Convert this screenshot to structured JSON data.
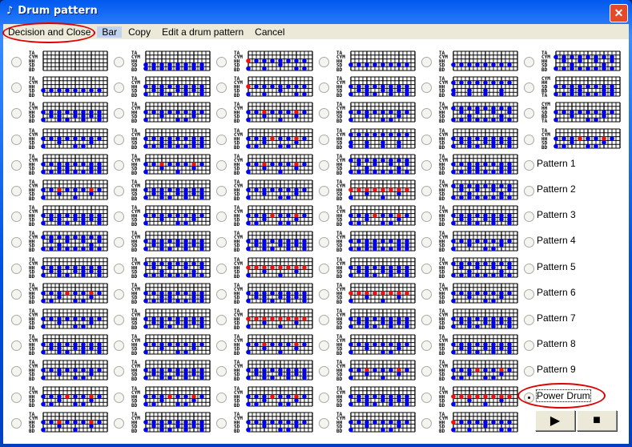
{
  "window": {
    "title": "Drum pattern",
    "close": "✕"
  },
  "menu": [
    "Decision and Close",
    "Bar",
    "Copy",
    "Edit a drum pattern",
    "Cancel"
  ],
  "menu_selected": 1,
  "default_labels": [
    "TA",
    "CYM",
    "HH",
    "SD",
    "BD"
  ],
  "templates": [
    [
      "................",
      "................",
      "................",
      "................",
      "................"
    ],
    [
      "................",
      "................",
      "................",
      "b.b.b.b.b.b.b.b.",
      "b.b.b.b.b.b.b.b."
    ],
    [
      "................",
      "................",
      "r.b.b.b.b.b.b.b.",
      "........b.......",
      "b...b.......b.b."
    ],
    [
      "................",
      "................",
      "................",
      "b.b.b.b.b.b.b.b.",
      "................"
    ],
    [
      "................",
      "................",
      "b.b.b.b.b.b.b.b.",
      "..b.b...b.b.b.b.",
      "b...b.b...b...b."
    ],
    [
      "................",
      "................",
      "b.b.b.b.b.b.b.b.",
      "....b.......b...",
      "b.......b.b....."
    ],
    [
      "................",
      "................",
      "b.b.r.b.b.b.r.b.",
      "....b.......b...",
      "b.......b......."
    ],
    [
      "................",
      "b.b.b.b.b.b.b.b.",
      "................",
      "b...b...b...b...",
      "b...b...b...b..."
    ],
    [
      "................",
      "................",
      "b.b.b.r.b.b.r.b.",
      "....b.......b...",
      "b.b.....b.b....."
    ],
    [
      "................",
      "................",
      "r.r.r.r.r.r.r.r.",
      "....b.......b...",
      "b.......b......."
    ],
    [
      "................",
      "b.b.b.b.b.b.b.b.",
      "..b...b...b...b.",
      "....b.......b...",
      "b.b.b.b.b.b.b.b."
    ],
    [
      "................",
      "................",
      "b.b.b.b.b.b.b.b.",
      "....b.b.....b.b.",
      "b.b.b.b.b.b.b.b."
    ]
  ],
  "columns": [
    {
      "cells": [
        0,
        3,
        4,
        5,
        11,
        6,
        4,
        10,
        4,
        8,
        5,
        4,
        5,
        8,
        6
      ]
    },
    {
      "cells": [
        1,
        4,
        5,
        11,
        6,
        4,
        5,
        4,
        10,
        11,
        4,
        5,
        4,
        8,
        4
      ]
    },
    {
      "cells": [
        2,
        2,
        6,
        8,
        6,
        5,
        8,
        4,
        9,
        4,
        9,
        6,
        4,
        8,
        5
      ]
    },
    {
      "cells": [
        3,
        4,
        5,
        7,
        10,
        9,
        8,
        11,
        4,
        9,
        4,
        5,
        6,
        4,
        5
      ]
    },
    {
      "cells": [
        3,
        7,
        10,
        4,
        11,
        10,
        4,
        5,
        10,
        5,
        4,
        4,
        8,
        9,
        2
      ]
    },
    {
      "cells": [
        10,
        11,
        5,
        8
      ]
    }
  ],
  "col6_labels": [
    null,
    [
      "CYM",
      "HH",
      "SD",
      "BD",
      "TA"
    ],
    [
      "CYM",
      "HH",
      "SD",
      "BD",
      "TA"
    ],
    null
  ],
  "patterns": [
    "Pattern 1",
    "Pattern 2",
    "Pattern 3",
    "Pattern 4",
    "Pattern 5",
    "Pattern 6",
    "Pattern 7",
    "Pattern 8",
    "Pattern 9",
    "Power Drum"
  ],
  "selected_pattern": "Power Drum",
  "buttons": {
    "play": "▶",
    "stop": "■"
  },
  "colors": {
    "dot": "#0000ee",
    "accent_dot": "#ee1111",
    "annotation": "#dd0000"
  }
}
